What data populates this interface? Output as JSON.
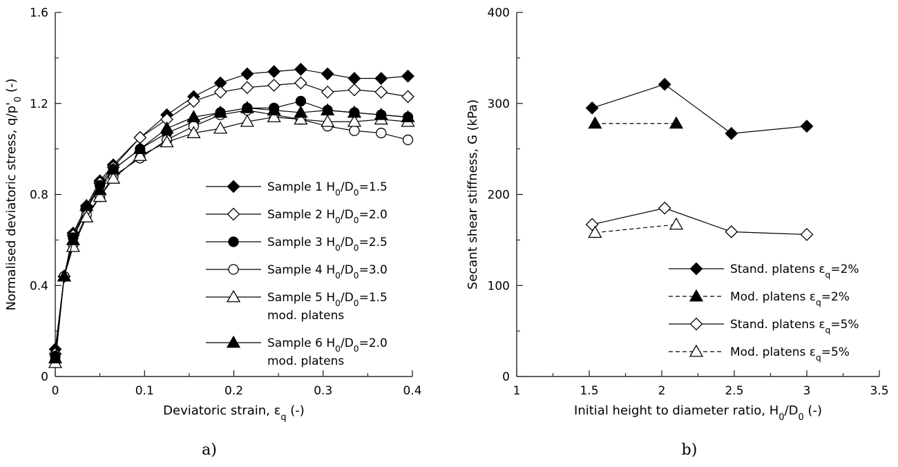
{
  "chart_data": [
    {
      "type": "line",
      "panel_label": "a)",
      "xlabel": "Deviatoric strain, εq (-)",
      "ylabel": "Normalised deviatoric stress, q/p'0 (-)",
      "xlim": [
        0,
        0.4
      ],
      "ylim": [
        0,
        1.6
      ],
      "xticks": [
        "0",
        "0.1",
        "0.2",
        "0.3",
        "0.4"
      ],
      "yticks": [
        "0",
        "0.4",
        "0.8",
        "1.2",
        "1.6"
      ],
      "grid": false,
      "legend_position": "center-right",
      "series": [
        {
          "name": "Sample 1 H0/D0=1.5",
          "marker": "diamond",
          "filled": true,
          "dashed": false,
          "x": [
            0,
            0.01,
            0.02,
            0.035,
            0.05,
            0.065,
            0.095,
            0.125,
            0.155,
            0.185,
            0.215,
            0.245,
            0.275,
            0.305,
            0.335,
            0.365,
            0.395
          ],
          "y": [
            0.12,
            0.44,
            0.63,
            0.75,
            0.86,
            0.93,
            1.05,
            1.15,
            1.23,
            1.29,
            1.33,
            1.34,
            1.35,
            1.33,
            1.31,
            1.31,
            1.32
          ]
        },
        {
          "name": "Sample 2 H0/D0=2.0",
          "marker": "diamond",
          "filled": false,
          "dashed": false,
          "x": [
            0,
            0.01,
            0.02,
            0.035,
            0.05,
            0.065,
            0.095,
            0.125,
            0.155,
            0.185,
            0.215,
            0.245,
            0.275,
            0.305,
            0.335,
            0.365,
            0.395
          ],
          "y": [
            0.1,
            0.44,
            0.62,
            0.74,
            0.85,
            0.92,
            1.05,
            1.13,
            1.21,
            1.25,
            1.27,
            1.28,
            1.29,
            1.25,
            1.26,
            1.25,
            1.23
          ]
        },
        {
          "name": "Sample 3 H0/D0=2.5",
          "marker": "circle",
          "filled": true,
          "dashed": false,
          "x": [
            0,
            0.01,
            0.02,
            0.035,
            0.05,
            0.065,
            0.095,
            0.125,
            0.155,
            0.185,
            0.215,
            0.245,
            0.275,
            0.305,
            0.335,
            0.365,
            0.395
          ],
          "y": [
            0.09,
            0.44,
            0.61,
            0.73,
            0.84,
            0.91,
            1.0,
            1.07,
            1.12,
            1.16,
            1.18,
            1.18,
            1.21,
            1.17,
            1.16,
            1.15,
            1.14
          ]
        },
        {
          "name": "Sample 4 H0/D0=3.0",
          "marker": "circle",
          "filled": false,
          "dashed": false,
          "x": [
            0,
            0.01,
            0.02,
            0.035,
            0.05,
            0.065,
            0.095,
            0.125,
            0.155,
            0.185,
            0.215,
            0.245,
            0.275,
            0.305,
            0.335,
            0.365,
            0.395
          ],
          "y": [
            0.07,
            0.44,
            0.58,
            0.71,
            0.79,
            0.88,
            0.96,
            1.04,
            1.1,
            1.15,
            1.17,
            1.15,
            1.13,
            1.1,
            1.08,
            1.07,
            1.04
          ]
        },
        {
          "name": "Sample 5 H0/D0=1.5 mod. platens",
          "marker": "triangle",
          "filled": false,
          "dashed": false,
          "x": [
            0,
            0.01,
            0.02,
            0.035,
            0.05,
            0.065,
            0.095,
            0.125,
            0.155,
            0.185,
            0.215,
            0.245,
            0.275,
            0.305,
            0.335,
            0.365,
            0.395
          ],
          "y": [
            0.06,
            0.44,
            0.57,
            0.7,
            0.79,
            0.87,
            0.97,
            1.03,
            1.07,
            1.09,
            1.12,
            1.14,
            1.13,
            1.12,
            1.12,
            1.13,
            1.12
          ]
        },
        {
          "name": "Sample 6 H0/D0=2.0 mod. platens",
          "marker": "triangle",
          "filled": true,
          "dashed": false,
          "x": [
            0,
            0.01,
            0.02,
            0.035,
            0.05,
            0.065,
            0.095,
            0.125,
            0.155,
            0.185,
            0.215,
            0.245,
            0.275,
            0.305,
            0.335,
            0.365,
            0.395
          ],
          "y": [
            0.08,
            0.44,
            0.6,
            0.75,
            0.82,
            0.91,
            1.0,
            1.09,
            1.14,
            1.16,
            1.18,
            1.17,
            1.16,
            1.17,
            1.16,
            1.15,
            1.14
          ]
        }
      ],
      "legend": [
        {
          "series": 0,
          "lines": [
            "Sample 1 H0/D0=1.5"
          ]
        },
        {
          "series": 1,
          "lines": [
            "Sample 2 H0/D0=2.0"
          ]
        },
        {
          "series": 2,
          "lines": [
            "Sample 3 H0/D0=2.5"
          ]
        },
        {
          "series": 3,
          "lines": [
            "Sample 4 H0/D0=3.0"
          ]
        },
        {
          "series": 4,
          "lines": [
            "Sample 5 H0/D0=1.5",
            "mod. platens"
          ]
        },
        {
          "series": 5,
          "lines": [
            "Sample 6 H0/D0=2.0",
            "mod. platens"
          ]
        }
      ]
    },
    {
      "type": "line",
      "panel_label": "b)",
      "xlabel": "Initial height to diameter ratio, H0/D0 (-)",
      "ylabel": "Secant shear stiffness, G (kPa)",
      "xlim": [
        1,
        3.5
      ],
      "ylim": [
        0,
        400
      ],
      "xticks": [
        "1",
        "1.5",
        "2",
        "2.5",
        "3",
        "3.5"
      ],
      "yticks": [
        "0",
        "100",
        "200",
        "300",
        "400"
      ],
      "grid": false,
      "legend_position": "bottom-right",
      "series": [
        {
          "name": "Stand. platens εq=2%",
          "marker": "diamond",
          "filled": true,
          "dashed": false,
          "x": [
            1.52,
            2.02,
            2.48,
            3.0
          ],
          "y": [
            295,
            321,
            267,
            275
          ]
        },
        {
          "name": "Mod. platens εq=2%",
          "marker": "triangle",
          "filled": true,
          "dashed": true,
          "x": [
            1.54,
            2.1
          ],
          "y": [
            278,
            278
          ]
        },
        {
          "name": "Stand. platens εq=5%",
          "marker": "diamond",
          "filled": false,
          "dashed": false,
          "x": [
            1.52,
            2.02,
            2.48,
            3.0
          ],
          "y": [
            167,
            185,
            159,
            156
          ]
        },
        {
          "name": "Mod. platens εq=5%",
          "marker": "triangle",
          "filled": false,
          "dashed": true,
          "x": [
            1.54,
            2.1
          ],
          "y": [
            158,
            167
          ]
        }
      ],
      "legend": [
        {
          "series": 0,
          "lines": [
            "Stand. platens εq=2%"
          ]
        },
        {
          "series": 1,
          "lines": [
            "Mod. platens εq=2%"
          ]
        },
        {
          "series": 2,
          "lines": [
            "Stand. platens εq=5%"
          ]
        },
        {
          "series": 3,
          "lines": [
            "Mod. platens εq=5%"
          ]
        }
      ]
    }
  ]
}
